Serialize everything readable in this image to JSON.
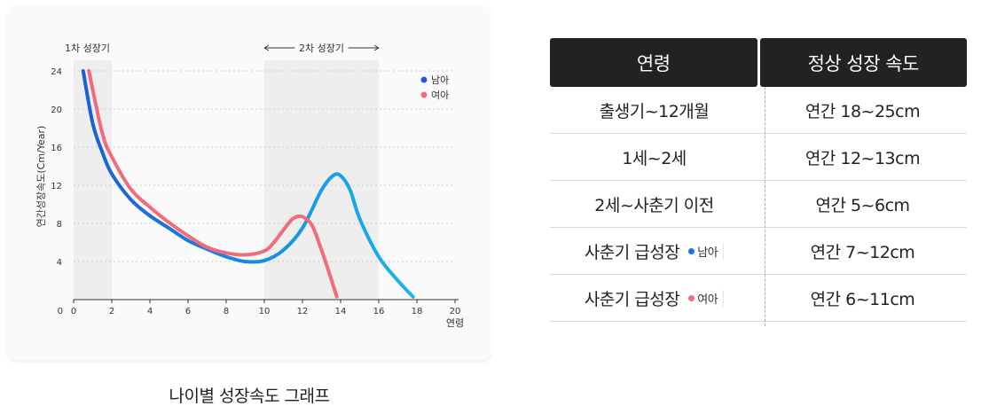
{
  "caption": "나이별 성장속도 그래프",
  "table": {
    "headers": [
      "연령",
      "정상 성장 속도"
    ],
    "rows": [
      {
        "age": "출생기~12개월",
        "rate": "연간 18~25cm"
      },
      {
        "age": "1세~2세",
        "rate": "연간 12~13cm"
      },
      {
        "age": "2세~사춘기 이전",
        "rate": "연간 5~6cm"
      },
      {
        "age": "사춘기 급성장",
        "tag": "남아",
        "rate": "연간 7~12cm"
      },
      {
        "age": "사춘기 급성장",
        "tag": "여아",
        "rate": "연간 6~11cm"
      }
    ]
  },
  "colors": {
    "male_start": "#1a5fd6",
    "male_end": "#19b4ee",
    "female": "#f26b7a",
    "shade": "#eeeeee",
    "axis": "#333333",
    "grid": "#cccccc"
  },
  "chart_data": {
    "type": "line",
    "ylabel": "연간성장속도(Cm/Year)",
    "xlabel": "연령",
    "xlim": [
      0,
      20
    ],
    "ylim": [
      0,
      24
    ],
    "x_ticks": [
      0,
      2,
      4,
      6,
      8,
      10,
      12,
      14,
      16,
      18,
      20
    ],
    "y_ticks": [
      4,
      8,
      12,
      16,
      20,
      24
    ],
    "grid": true,
    "legend_position": "top-right",
    "shaded_periods": [
      {
        "label": "1차 성장기",
        "start": 0,
        "end": 2
      },
      {
        "label": "2차 성장기",
        "start": 10,
        "end": 16
      }
    ],
    "series": [
      {
        "name": "남아",
        "x": [
          0.5,
          1.0,
          1.5,
          2.0,
          3.0,
          4.0,
          5.0,
          6.0,
          7.0,
          8.0,
          9.0,
          10.0,
          11.0,
          12.0,
          13.0,
          13.6,
          14.0,
          14.5,
          15.0,
          16.0,
          17.0,
          17.8
        ],
        "y": [
          24,
          18.5,
          15.5,
          13.2,
          10.5,
          8.8,
          7.5,
          6.2,
          5.3,
          4.5,
          4.0,
          4.1,
          5.2,
          7.5,
          11.5,
          13.0,
          13.0,
          11.5,
          8.5,
          4.5,
          2.0,
          0.3
        ]
      },
      {
        "name": "여아",
        "x": [
          0.8,
          1.5,
          2.0,
          3.0,
          4.0,
          5.0,
          6.0,
          7.0,
          8.0,
          9.0,
          10.0,
          10.5,
          11.0,
          11.5,
          12.0,
          12.5,
          13.0,
          13.5,
          13.8
        ],
        "y": [
          24,
          17.5,
          15.0,
          11.6,
          9.7,
          8.1,
          6.7,
          5.5,
          4.9,
          4.7,
          5.1,
          6.0,
          7.3,
          8.5,
          8.7,
          7.8,
          5.2,
          2.2,
          0.3
        ]
      }
    ]
  }
}
